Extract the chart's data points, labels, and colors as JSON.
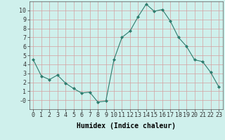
{
  "x": [
    0,
    1,
    2,
    3,
    4,
    5,
    6,
    7,
    8,
    9,
    10,
    11,
    12,
    13,
    14,
    15,
    16,
    17,
    18,
    19,
    20,
    21,
    22,
    23
  ],
  "y": [
    4.5,
    2.7,
    2.3,
    2.8,
    1.9,
    1.3,
    0.8,
    0.9,
    -0.2,
    -0.1,
    4.5,
    7.0,
    7.7,
    9.3,
    10.7,
    9.9,
    10.1,
    8.8,
    7.0,
    6.0,
    4.5,
    4.3,
    3.1,
    1.5
  ],
  "line_color": "#2e7d6e",
  "marker": "D",
  "marker_size": 2,
  "bg_color": "#cff0ec",
  "grid_color_major": "#d4a0a0",
  "grid_color_minor": "#d4a0a0",
  "xlabel": "Humidex (Indice chaleur)",
  "ylim": [
    -1,
    11
  ],
  "xlim": [
    -0.5,
    23.5
  ],
  "yticks": [
    0,
    1,
    2,
    3,
    4,
    5,
    6,
    7,
    8,
    9,
    10
  ],
  "ytick_labels": [
    "-0",
    "1",
    "2",
    "3",
    "4",
    "5",
    "6",
    "7",
    "8",
    "9",
    "10"
  ],
  "xticks": [
    0,
    1,
    2,
    3,
    4,
    5,
    6,
    7,
    8,
    9,
    10,
    11,
    12,
    13,
    14,
    15,
    16,
    17,
    18,
    19,
    20,
    21,
    22,
    23
  ],
  "xlabel_fontsize": 7,
  "tick_fontsize": 6
}
